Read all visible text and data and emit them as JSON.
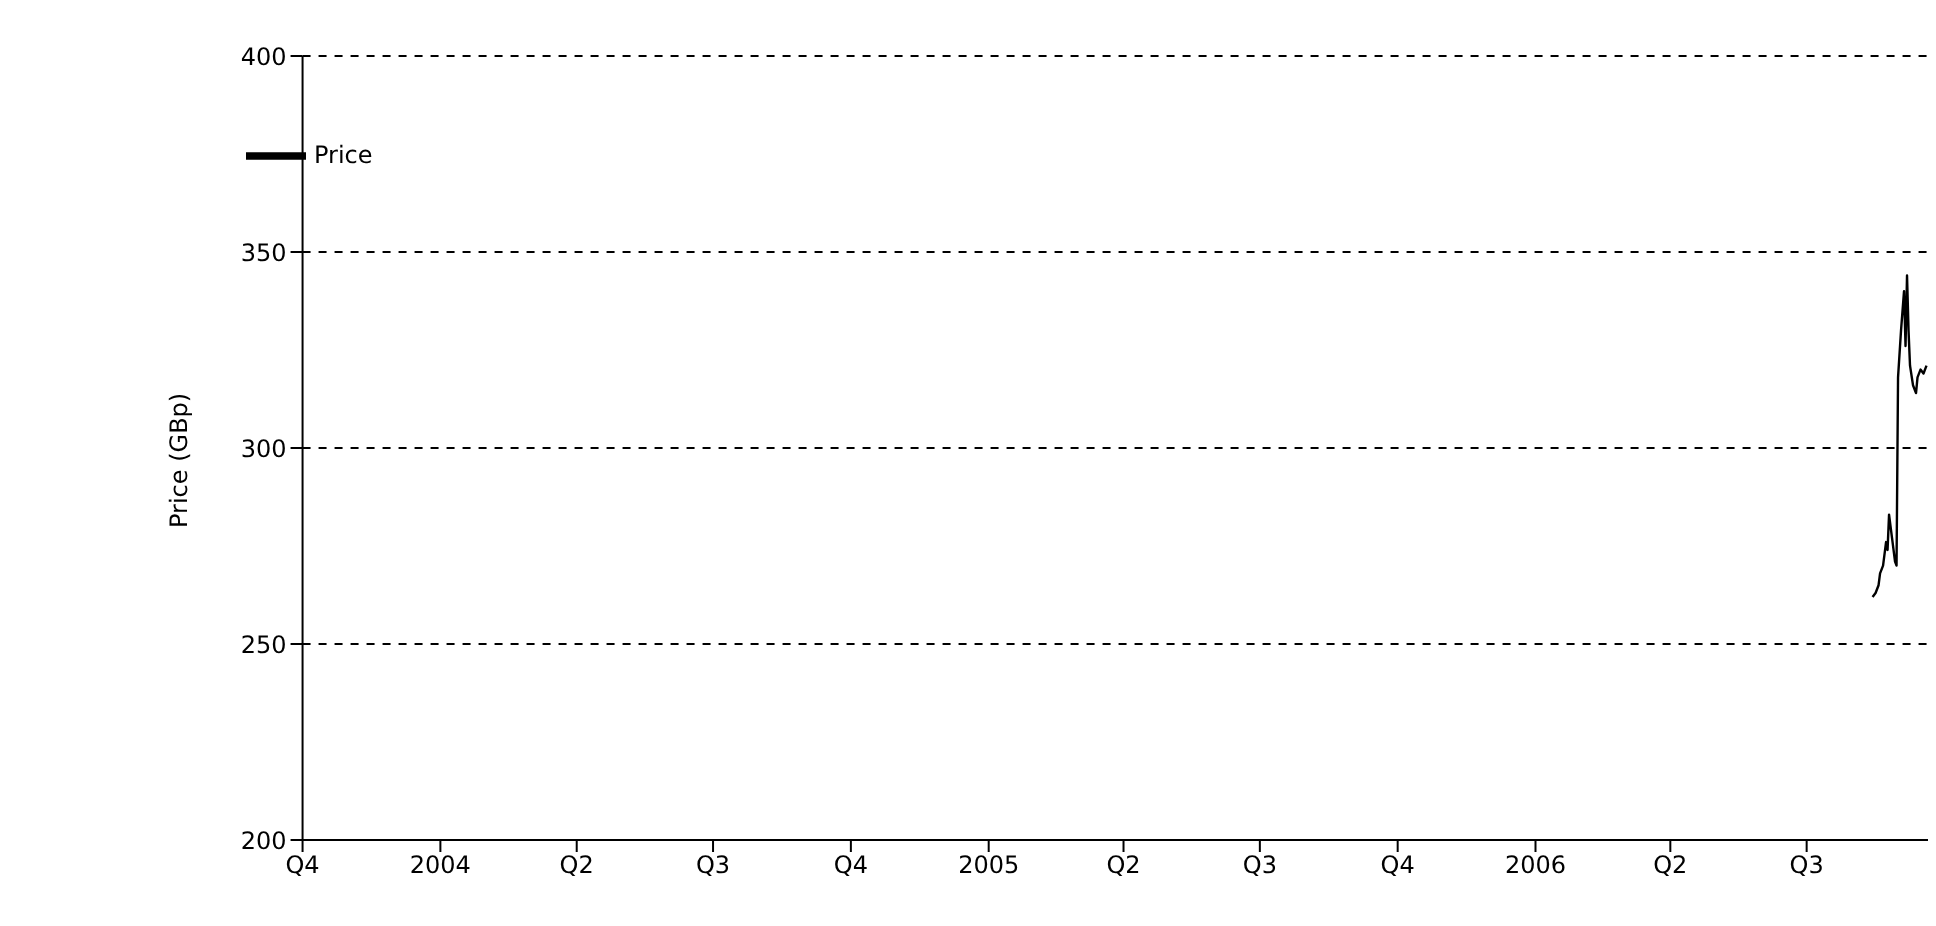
{
  "chart_data": {
    "type": "line",
    "ylabel": "Price (GBp)",
    "x": [
      "2006-08-14",
      "2006-08-16",
      "2006-08-18",
      "2006-08-19",
      "2006-08-21",
      "2006-08-23",
      "2006-08-24",
      "2006-08-25",
      "2006-08-27",
      "2006-08-29",
      "2006-08-30",
      "2006-08-31",
      "2006-09-02",
      "2006-09-04",
      "2006-09-05",
      "2006-09-06",
      "2006-09-07",
      "2006-09-08",
      "2006-09-10",
      "2006-09-12",
      "2006-09-13",
      "2006-09-15",
      "2006-09-17",
      "2006-09-19"
    ],
    "series": [
      {
        "name": "Price",
        "color": "#000000",
        "values": [
          262,
          263,
          265,
          268,
          270,
          276,
          274,
          283,
          277,
          271,
          270,
          318,
          330,
          340,
          326,
          344,
          330,
          321,
          316,
          314,
          318,
          320,
          319,
          321
        ]
      }
    ],
    "xlim": [
      "2003-10-01",
      "2006-09-20"
    ],
    "xticks": [
      {
        "value": "2003-10-01",
        "label": "Q4"
      },
      {
        "value": "2004-01-01",
        "label": "2004"
      },
      {
        "value": "2004-04-01",
        "label": "Q2"
      },
      {
        "value": "2004-07-01",
        "label": "Q3"
      },
      {
        "value": "2004-10-01",
        "label": "Q4"
      },
      {
        "value": "2005-01-01",
        "label": "2005"
      },
      {
        "value": "2005-04-01",
        "label": "Q2"
      },
      {
        "value": "2005-07-01",
        "label": "Q3"
      },
      {
        "value": "2005-10-01",
        "label": "Q4"
      },
      {
        "value": "2006-01-01",
        "label": "2006"
      },
      {
        "value": "2006-04-01",
        "label": "Q2"
      },
      {
        "value": "2006-07-01",
        "label": "Q3"
      }
    ],
    "ylim": [
      200,
      400
    ],
    "yticks": [
      200,
      250,
      300,
      350,
      400
    ],
    "grid": "y",
    "legend": "top left",
    "marker": "none",
    "line_style": "solid"
  }
}
